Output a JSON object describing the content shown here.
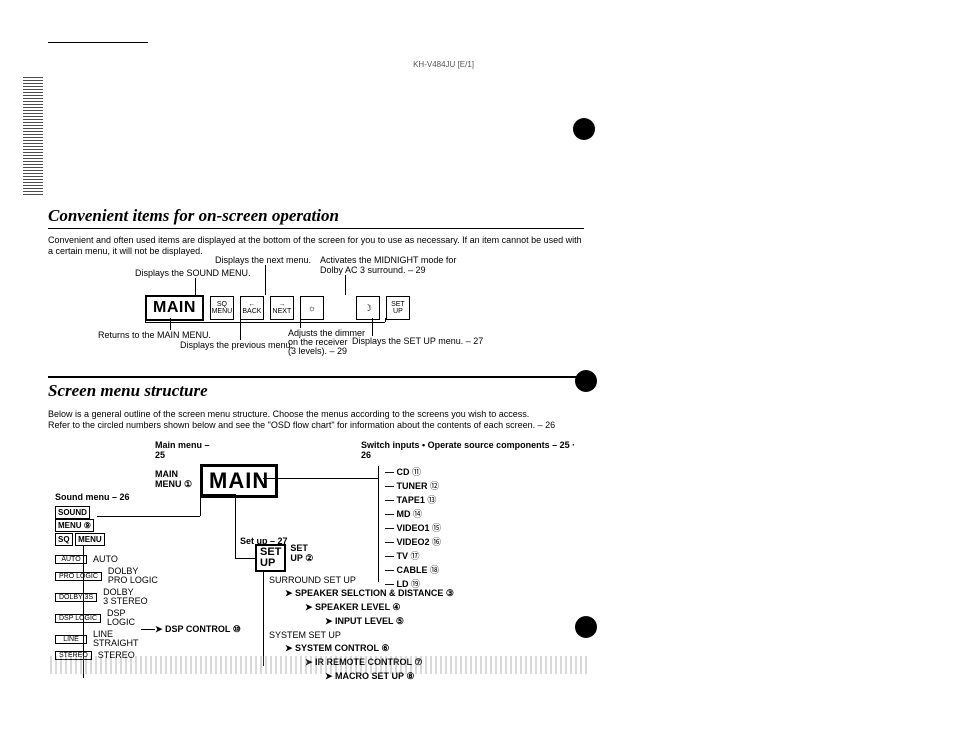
{
  "header_code": "KH-V484JU [E/1]",
  "section1": {
    "title": "Convenient items for on-screen operation",
    "desc": "Convenient and often used items are displayed at the bottom of the screen for you to use as necessary. If an item cannot be used with a certain menu, it will not be displayed."
  },
  "osd": {
    "main": "MAIN",
    "sq_menu_top": "SQ",
    "sq_menu_bot": "MENU",
    "back_top": "←",
    "back_bot": "BACK",
    "next_top": "→",
    "next_bot": "NEXT",
    "dim": "☼",
    "midnight": "☽",
    "setup_top": "SET",
    "setup_bot": "UP"
  },
  "annot": {
    "next": "Displays the next menu.",
    "midnight1": "Activates the MIDNIGHT mode for",
    "midnight2": "Dolby AC 3 surround. – 29",
    "sound": "Displays the SOUND MENU.",
    "return": "Returns to the MAIN MENU.",
    "prev": "Displays the previous menu.",
    "dim1": "Adjusts the dimmer",
    "dim2": "on the receiver",
    "dim3": "(3 levels). – 29",
    "setup": "Displays the SET UP menu. – 27"
  },
  "section2": {
    "title": "Screen menu structure",
    "desc1": "Below is a general outline of the screen menu structure. Choose the menus according to the screens you wish to access.",
    "desc2": "Refer to the circled numbers shown below and see the \"OSD flow chart\" for information about the contents of each screen. – 26"
  },
  "struct": {
    "main_menu_hdr": "Main menu – 25",
    "switch_hdr": "Switch inputs • Operate source components – 25 · 26",
    "main_menu_lbl": "MAIN\nMENU ①",
    "main_box": "MAIN",
    "sound_menu_hdr": "Sound menu – 26",
    "sound_menu_box1": "SOUND",
    "sound_menu_box2": "MENU ⑨",
    "sound_menu_box3": "SQ",
    "sound_menu_box4": "MENU",
    "sound_items": [
      {
        "box": "AUTO",
        "label": "AUTO"
      },
      {
        "box": "PRO LOGIC",
        "label": "DOLBY\nPRO LOGIC"
      },
      {
        "box": "DOLBY 3S",
        "label": "DOLBY\n3 STEREO"
      },
      {
        "box": "DSP LOGIC",
        "label": "DSP\nLOGIC"
      },
      {
        "box": "LINE",
        "label": "LINE\nSTRAIGHT"
      },
      {
        "box": "STEREO",
        "label": "STEREO"
      }
    ],
    "dsp_control": "DSP CONTROL ⑩",
    "setup_hdr": "Set up – 27",
    "setup_box": "SET\nUP",
    "setup_lbl": "SET\nUP ②",
    "surround_setup": "SURROUND SET UP",
    "speaker_sel": "SPEAKER SELCTION & DISTANCE ③",
    "speaker_lvl": "SPEAKER LEVEL ④",
    "input_lvl": "INPUT LEVEL ⑤",
    "system_setup": "SYSTEM SET UP",
    "system_control": "SYSTEM CONTROL ⑥",
    "ir_remote": "IR REMOTE CONTROL ⑦",
    "macro": "MACRO SET UP ⑧",
    "inputs": [
      {
        "label": "CD",
        "n": "⑪"
      },
      {
        "label": "TUNER",
        "n": "⑫"
      },
      {
        "label": "TAPE1",
        "n": "⑬"
      },
      {
        "label": "MD",
        "n": "⑭"
      },
      {
        "label": "VIDEO1",
        "n": "⑮"
      },
      {
        "label": "VIDEO2",
        "n": "⑯"
      },
      {
        "label": "TV",
        "n": "⑰"
      },
      {
        "label": "CABLE",
        "n": "⑱"
      },
      {
        "label": "LD",
        "n": "⑲"
      }
    ]
  }
}
